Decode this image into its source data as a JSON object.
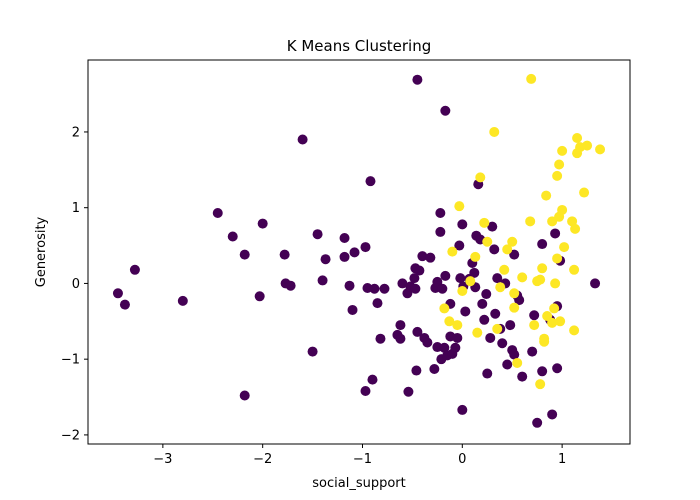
{
  "chart_data": {
    "type": "scatter",
    "title": "K Means Clustering",
    "xlabel": "social_support",
    "ylabel": "Generosity",
    "xlim": [
      -3.75,
      1.68
    ],
    "ylim": [
      -2.12,
      2.95
    ],
    "xticks": [
      -3,
      -2,
      -1,
      0,
      1
    ],
    "yticks": [
      -2,
      -1,
      0,
      1,
      2
    ],
    "xtick_labels": [
      "−3",
      "−2",
      "−1",
      "0",
      "1"
    ],
    "ytick_labels": [
      "−2",
      "−1",
      "0",
      "1",
      "2"
    ],
    "grid": false,
    "series": [
      {
        "color": "#440154",
        "points": [
          [
            -3.45,
            -0.13
          ],
          [
            -3.38,
            -0.28
          ],
          [
            -3.28,
            0.18
          ],
          [
            -2.8,
            -0.23
          ],
          [
            -2.45,
            0.93
          ],
          [
            -2.3,
            0.62
          ],
          [
            -2.18,
            0.38
          ],
          [
            -2.18,
            -1.48
          ],
          [
            -2.03,
            -0.17
          ],
          [
            -2.0,
            0.79
          ],
          [
            -1.78,
            0.38
          ],
          [
            -1.77,
            0.0
          ],
          [
            -1.72,
            -0.03
          ],
          [
            -1.6,
            1.9
          ],
          [
            -1.5,
            -0.9
          ],
          [
            -1.45,
            0.65
          ],
          [
            -1.4,
            0.04
          ],
          [
            -1.37,
            0.32
          ],
          [
            -1.18,
            0.6
          ],
          [
            -1.18,
            0.35
          ],
          [
            -1.13,
            -0.03
          ],
          [
            -1.1,
            -0.35
          ],
          [
            -1.08,
            0.41
          ],
          [
            -0.97,
            0.48
          ],
          [
            -0.97,
            -1.42
          ],
          [
            -0.95,
            -0.06
          ],
          [
            -0.92,
            1.35
          ],
          [
            -0.9,
            -1.27
          ],
          [
            -0.88,
            -0.07
          ],
          [
            -0.85,
            -0.26
          ],
          [
            -0.82,
            -0.73
          ],
          [
            -0.78,
            -0.07
          ],
          [
            -0.65,
            -0.68
          ],
          [
            -0.62,
            -0.73
          ],
          [
            -0.62,
            -0.55
          ],
          [
            -0.6,
            0.0
          ],
          [
            -0.55,
            -0.13
          ],
          [
            -0.54,
            -1.43
          ],
          [
            -0.52,
            -0.04
          ],
          [
            -0.48,
            0.07
          ],
          [
            -0.47,
            0.2
          ],
          [
            -0.47,
            -0.07
          ],
          [
            -0.46,
            -1.15
          ],
          [
            -0.45,
            -0.64
          ],
          [
            -0.45,
            2.69
          ],
          [
            -0.43,
            0.17
          ],
          [
            -0.4,
            0.36
          ],
          [
            -0.38,
            -0.72
          ],
          [
            -0.35,
            -0.78
          ],
          [
            -0.32,
            0.34
          ],
          [
            -0.28,
            -1.13
          ],
          [
            -0.27,
            -0.06
          ],
          [
            -0.25,
            -0.84
          ],
          [
            -0.25,
            0.02
          ],
          [
            -0.22,
            0.68
          ],
          [
            -0.22,
            0.93
          ],
          [
            -0.21,
            -1.0
          ],
          [
            -0.2,
            -0.07
          ],
          [
            -0.18,
            -0.85
          ],
          [
            -0.17,
            0.1
          ],
          [
            -0.17,
            2.28
          ],
          [
            -0.15,
            -0.95
          ],
          [
            -0.12,
            -0.7
          ],
          [
            -0.12,
            -0.27
          ],
          [
            -0.1,
            -0.93
          ],
          [
            -0.07,
            -0.85
          ],
          [
            -0.05,
            -0.72
          ],
          [
            -0.03,
            0.5
          ],
          [
            -0.02,
            0.07
          ],
          [
            0.0,
            0.78
          ],
          [
            0.0,
            -1.67
          ],
          [
            0.01,
            -0.04
          ],
          [
            0.03,
            -0.37
          ],
          [
            0.07,
            0.06
          ],
          [
            0.1,
            0.27
          ],
          [
            0.12,
            0.14
          ],
          [
            0.13,
            -0.05
          ],
          [
            0.14,
            0.63
          ],
          [
            0.16,
            1.31
          ],
          [
            0.18,
            0.58
          ],
          [
            0.2,
            -0.27
          ],
          [
            0.22,
            -0.48
          ],
          [
            0.24,
            -0.14
          ],
          [
            0.25,
            -1.19
          ],
          [
            0.28,
            -0.72
          ],
          [
            0.3,
            0.75
          ],
          [
            0.32,
            0.45
          ],
          [
            0.33,
            -0.4
          ],
          [
            0.35,
            0.07
          ],
          [
            0.38,
            -0.6
          ],
          [
            0.4,
            -0.79
          ],
          [
            0.43,
            0.0
          ],
          [
            0.45,
            -1.07
          ],
          [
            0.48,
            -0.55
          ],
          [
            0.5,
            -0.88
          ],
          [
            0.52,
            -0.94
          ],
          [
            0.52,
            0.38
          ],
          [
            0.55,
            -0.16
          ],
          [
            0.57,
            -0.22
          ],
          [
            0.6,
            -1.23
          ],
          [
            0.7,
            -0.9
          ],
          [
            0.72,
            -0.42
          ],
          [
            0.75,
            -1.84
          ],
          [
            0.8,
            0.52
          ],
          [
            0.8,
            -1.16
          ],
          [
            0.88,
            -0.48
          ],
          [
            0.9,
            -1.73
          ],
          [
            0.93,
            0.66
          ],
          [
            0.95,
            -0.3
          ],
          [
            0.95,
            -1.12
          ],
          [
            0.98,
            0.3
          ],
          [
            1.33,
            0.0
          ]
        ]
      },
      {
        "color": "#fde725",
        "points": [
          [
            -0.18,
            -0.33
          ],
          [
            -0.13,
            -0.5
          ],
          [
            -0.1,
            0.42
          ],
          [
            -0.05,
            -0.55
          ],
          [
            -0.03,
            1.02
          ],
          [
            0.0,
            -0.1
          ],
          [
            0.08,
            0.03
          ],
          [
            0.13,
            0.35
          ],
          [
            0.15,
            -0.65
          ],
          [
            0.18,
            1.4
          ],
          [
            0.22,
            0.8
          ],
          [
            0.25,
            0.55
          ],
          [
            0.32,
            2.0
          ],
          [
            0.35,
            -0.6
          ],
          [
            0.38,
            -0.05
          ],
          [
            0.42,
            0.18
          ],
          [
            0.45,
            0.45
          ],
          [
            0.5,
            0.55
          ],
          [
            0.52,
            -0.32
          ],
          [
            0.52,
            -0.13
          ],
          [
            0.55,
            -1.05
          ],
          [
            0.6,
            0.08
          ],
          [
            0.68,
            0.82
          ],
          [
            0.69,
            2.7
          ],
          [
            0.72,
            -0.55
          ],
          [
            0.75,
            0.03
          ],
          [
            0.78,
            -1.33
          ],
          [
            0.78,
            0.05
          ],
          [
            0.8,
            0.2
          ],
          [
            0.82,
            -0.73
          ],
          [
            0.82,
            -0.77
          ],
          [
            0.84,
            1.16
          ],
          [
            0.85,
            -0.43
          ],
          [
            0.9,
            -0.52
          ],
          [
            0.9,
            0.82
          ],
          [
            0.92,
            -0.33
          ],
          [
            0.93,
            0.0
          ],
          [
            0.95,
            1.42
          ],
          [
            0.95,
            0.33
          ],
          [
            0.97,
            1.57
          ],
          [
            0.97,
            0.88
          ],
          [
            0.98,
            -0.5
          ],
          [
            1.0,
            0.97
          ],
          [
            1.0,
            1.75
          ],
          [
            1.02,
            0.48
          ],
          [
            1.1,
            0.82
          ],
          [
            1.12,
            0.18
          ],
          [
            1.12,
            -0.62
          ],
          [
            1.13,
            0.72
          ],
          [
            1.15,
            1.92
          ],
          [
            1.15,
            1.72
          ],
          [
            1.18,
            1.8
          ],
          [
            1.22,
            1.2
          ],
          [
            1.25,
            1.82
          ],
          [
            1.38,
            1.77
          ]
        ]
      }
    ]
  }
}
